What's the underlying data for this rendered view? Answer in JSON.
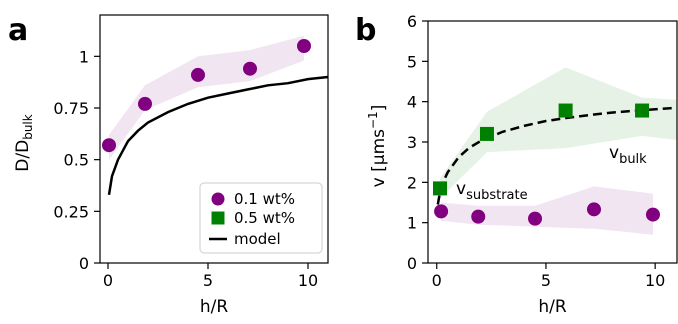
{
  "chart_data": [
    {
      "panel": "a",
      "type": "scatter",
      "xlabel": "h/R",
      "ylabel": "D/D",
      "ylabel_sub": "bulk",
      "xlim": [
        -0.4,
        11
      ],
      "ylim": [
        0,
        1.2
      ],
      "xticks": [
        0,
        5,
        10
      ],
      "yticks": [
        0,
        0.25,
        0.5,
        0.75,
        1
      ],
      "ytick_labels": [
        "0",
        "0.25",
        "0.5",
        "0.75",
        "1"
      ],
      "series": [
        {
          "name": "0.1 wt%",
          "marker": "circle",
          "color": "#800080",
          "x": [
            0.05,
            1.85,
            4.5,
            7.1,
            9.8
          ],
          "y": [
            0.57,
            0.77,
            0.91,
            0.94,
            1.05
          ]
        },
        {
          "name": "model",
          "marker": "line",
          "color": "#000000",
          "x": [
            0.05,
            0.2,
            0.5,
            1,
            1.5,
            2,
            3,
            4,
            5,
            6,
            7,
            8,
            9,
            10,
            11
          ],
          "y": [
            0.33,
            0.42,
            0.5,
            0.59,
            0.64,
            0.68,
            0.73,
            0.77,
            0.8,
            0.82,
            0.84,
            0.86,
            0.87,
            0.89,
            0.9
          ]
        }
      ],
      "band": {
        "color": "#800080",
        "x": [
          0.05,
          1.85,
          4.5,
          7.1,
          9.8
        ],
        "lower": [
          0.5,
          0.74,
          0.85,
          0.88,
          0.98
        ],
        "upper": [
          0.62,
          0.86,
          1.0,
          1.03,
          1.1
        ]
      },
      "legend": {
        "placement": "lower-right",
        "entries": [
          {
            "label": "0.1 wt%",
            "marker": "circle",
            "color": "#800080"
          },
          {
            "label": "0.5 wt%",
            "marker": "square",
            "color": "#008000"
          },
          {
            "label": "model",
            "marker": "line",
            "color": "#000000"
          }
        ]
      }
    },
    {
      "panel": "b",
      "type": "scatter",
      "xlabel": "h/R",
      "ylabel": "v [μms",
      "ylabel_sup": "−1",
      "ylabel_end": "]",
      "xlim": [
        -0.4,
        11
      ],
      "ylim": [
        0,
        6
      ],
      "xticks": [
        0,
        5,
        10
      ],
      "yticks": [
        0,
        1,
        2,
        3,
        4,
        5,
        6
      ],
      "ytick_labels": [
        "0",
        "1",
        "2",
        "3",
        "4",
        "5",
        "6"
      ],
      "series": [
        {
          "name": "0.5 wt%",
          "marker": "square",
          "color": "#008000",
          "x": [
            0.15,
            2.3,
            5.9,
            9.4
          ],
          "y": [
            1.85,
            3.2,
            3.78,
            3.78
          ]
        },
        {
          "name": "0.1 wt%",
          "marker": "circle",
          "color": "#800080",
          "x": [
            0.2,
            1.9,
            4.5,
            7.2,
            9.9
          ],
          "y": [
            1.28,
            1.15,
            1.1,
            1.33,
            1.2
          ]
        },
        {
          "name": "model",
          "marker": "dashed",
          "color": "#000000",
          "x": [
            0.05,
            0.2,
            0.5,
            1,
            1.5,
            2,
            3,
            4,
            5,
            6,
            7,
            8,
            9,
            10,
            11
          ],
          "y": [
            1.45,
            1.9,
            2.25,
            2.62,
            2.86,
            3.02,
            3.25,
            3.4,
            3.52,
            3.6,
            3.67,
            3.73,
            3.77,
            3.81,
            3.85
          ]
        }
      ],
      "bands": [
        {
          "color": "#008000",
          "x": [
            0.15,
            2.3,
            5.9,
            9.4,
            11
          ],
          "lower": [
            1.6,
            2.75,
            2.85,
            3.15,
            3.05
          ],
          "upper": [
            2.1,
            3.75,
            4.85,
            4.1,
            4.05
          ]
        },
        {
          "color": "#800080",
          "x": [
            0.2,
            1.9,
            4.5,
            7.2,
            9.9
          ],
          "lower": [
            1.05,
            0.95,
            0.9,
            0.85,
            0.7
          ],
          "upper": [
            1.5,
            1.42,
            1.42,
            1.9,
            1.72
          ]
        }
      ],
      "annotations": [
        {
          "text": "v",
          "sub": "substrate"
        },
        {
          "text": "v",
          "sub": "bulk"
        }
      ]
    }
  ]
}
